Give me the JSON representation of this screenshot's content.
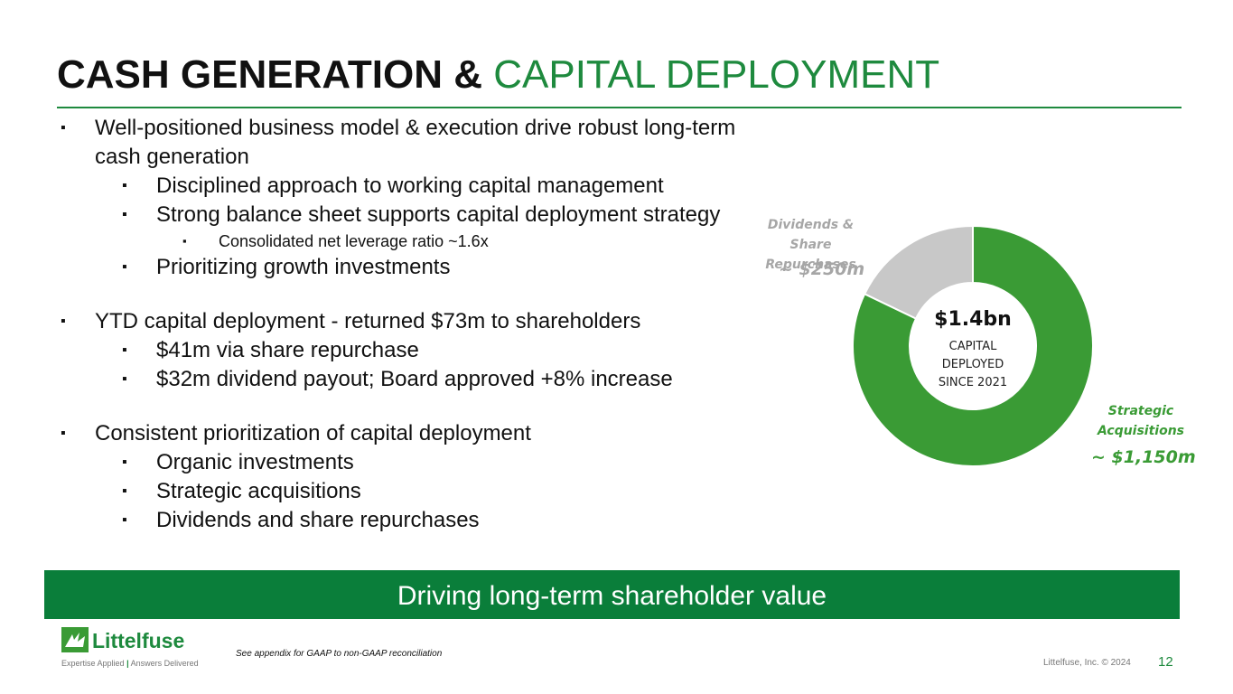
{
  "title": {
    "dark": "CASH GENERATION &",
    "green": "CAPITAL DEPLOYMENT"
  },
  "bullets": [
    {
      "text": "Well-positioned business model & execution drive robust long-term cash generation",
      "items": [
        {
          "text": "Disciplined approach to working capital management"
        },
        {
          "text": "Strong balance sheet supports capital deployment strategy",
          "items": [
            {
              "text": "Consolidated net leverage ratio ~1.6x"
            }
          ]
        },
        {
          "text": "Prioritizing growth investments"
        }
      ]
    },
    {
      "text": "YTD capital deployment - returned $73m to shareholders",
      "items": [
        {
          "text": "$41m via share repurchase"
        },
        {
          "text": "$32m dividend payout; Board approved +8% increase"
        }
      ]
    },
    {
      "text": "Consistent prioritization of capital deployment",
      "items": [
        {
          "text": "Organic investments"
        },
        {
          "text": "Strategic acquisitions"
        },
        {
          "text": "Dividends and share repurchases"
        }
      ]
    }
  ],
  "chart_data": {
    "type": "donut",
    "categories": [
      "Dividends & Share Repurchases",
      "Strategic Acquisitions"
    ],
    "values": [
      250,
      1150
    ],
    "value_labels": [
      "~ $250m",
      "~ $1,150m"
    ],
    "colors": [
      "#c8c8c8",
      "#3a9b35"
    ],
    "label_colors": [
      "#a6a6a6",
      "#3a9b35"
    ],
    "center": {
      "total": "$1.4bn",
      "lines": [
        "CAPITAL",
        "DEPLOYED",
        "SINCE 2021"
      ]
    }
  },
  "banner": "Driving long-term shareholder value",
  "logo": {
    "name": "Littelfuse",
    "tagline_left": "Expertise Applied",
    "tagline_right": "Answers Delivered"
  },
  "footer": {
    "note": "See appendix for GAAP to non-GAAP reconciliation",
    "copyright": "Littelfuse, Inc. © 2024",
    "page": "12"
  }
}
